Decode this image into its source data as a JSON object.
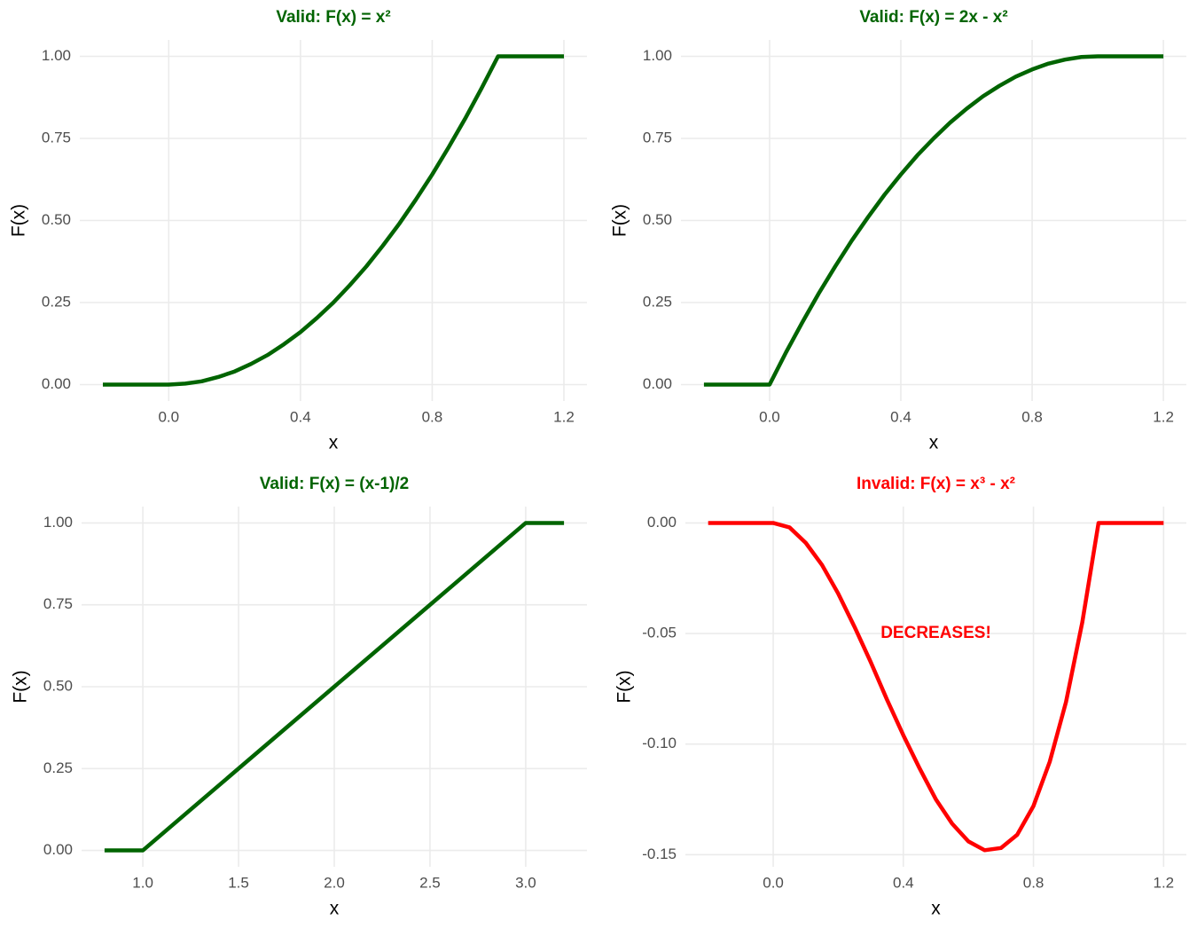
{
  "chart_data": [
    {
      "type": "line",
      "title": "Valid: F(x) = x²",
      "xlabel": "x",
      "ylabel": "F(x)",
      "color": "#006400",
      "x": [
        -0.2,
        -0.15,
        -0.1,
        -0.05,
        0,
        0.05,
        0.1,
        0.15,
        0.2,
        0.25,
        0.3,
        0.35,
        0.4,
        0.45,
        0.5,
        0.55,
        0.6,
        0.65,
        0.7,
        0.75,
        0.8,
        0.85,
        0.9,
        0.95,
        1,
        1.05,
        1.1,
        1.15,
        1.2
      ],
      "values": [
        0,
        0,
        0,
        0,
        0,
        0.003,
        0.01,
        0.023,
        0.04,
        0.063,
        0.09,
        0.123,
        0.16,
        0.203,
        0.25,
        0.303,
        0.36,
        0.423,
        0.49,
        0.563,
        0.64,
        0.723,
        0.81,
        0.903,
        1,
        1,
        1,
        1,
        1
      ],
      "xlim": [
        -0.27,
        1.27
      ],
      "ylim": [
        -0.05,
        1.05
      ],
      "xticks": [
        {
          "value": 0,
          "label": "0.0"
        },
        0.4,
        0.8,
        1.2
      ],
      "yticks": [
        {
          "value": 0,
          "label": "0.00"
        },
        0.25,
        {
          "value": 0.5,
          "label": "0.50"
        },
        0.75,
        {
          "value": 1,
          "label": "1.00"
        }
      ],
      "grid": true
    },
    {
      "type": "line",
      "title": "Valid: F(x) = 2x - x²",
      "xlabel": "x",
      "ylabel": "F(x)",
      "color": "#006400",
      "x": [
        -0.2,
        -0.15,
        -0.1,
        -0.05,
        0,
        0.05,
        0.1,
        0.15,
        0.2,
        0.25,
        0.3,
        0.35,
        0.4,
        0.45,
        0.5,
        0.55,
        0.6,
        0.65,
        0.7,
        0.75,
        0.8,
        0.85,
        0.9,
        0.95,
        1,
        1.05,
        1.1,
        1.15,
        1.2
      ],
      "values": [
        0,
        0,
        0,
        0,
        0,
        0.098,
        0.19,
        0.278,
        0.36,
        0.438,
        0.51,
        0.578,
        0.64,
        0.698,
        0.75,
        0.798,
        0.84,
        0.878,
        0.91,
        0.938,
        0.96,
        0.978,
        0.99,
        0.998,
        1,
        1,
        1,
        1,
        1
      ],
      "xlim": [
        -0.27,
        1.27
      ],
      "ylim": [
        -0.05,
        1.05
      ],
      "xticks": [
        {
          "value": 0,
          "label": "0.0"
        },
        0.4,
        0.8,
        1.2
      ],
      "yticks": [
        {
          "value": 0,
          "label": "0.00"
        },
        0.25,
        {
          "value": 0.5,
          "label": "0.50"
        },
        0.75,
        {
          "value": 1,
          "label": "1.00"
        }
      ],
      "grid": true
    },
    {
      "type": "line",
      "title": "Valid: F(x) = (x-1)/2",
      "xlabel": "x",
      "ylabel": "F(x)",
      "color": "#006400",
      "x": [
        0.8,
        1,
        1.5,
        2,
        2.5,
        3,
        3.2
      ],
      "values": [
        0,
        0,
        0.25,
        0.5,
        0.75,
        1,
        1
      ],
      "xlim": [
        0.68,
        3.32
      ],
      "ylim": [
        -0.05,
        1.05
      ],
      "xticks": [
        {
          "value": 1,
          "label": "1.0"
        },
        1.5,
        {
          "value": 2,
          "label": "2.0"
        },
        2.5,
        {
          "value": 3,
          "label": "3.0"
        }
      ],
      "yticks": [
        {
          "value": 0,
          "label": "0.00"
        },
        0.25,
        {
          "value": 0.5,
          "label": "0.50"
        },
        0.75,
        {
          "value": 1,
          "label": "1.00"
        }
      ],
      "grid": true
    },
    {
      "type": "line",
      "title": "Invalid: F(x) = x³ - x²",
      "xlabel": "x",
      "ylabel": "F(x)",
      "color": "#ff0000",
      "x": [
        -0.2,
        -0.15,
        -0.1,
        -0.05,
        0,
        0.05,
        0.1,
        0.15,
        0.2,
        0.25,
        0.3,
        0.35,
        0.4,
        0.45,
        0.5,
        0.55,
        0.6,
        0.65,
        0.7,
        0.75,
        0.8,
        0.85,
        0.9,
        0.95,
        1,
        1.05,
        1.1,
        1.15,
        1.2
      ],
      "values": [
        0,
        0,
        0,
        0,
        0,
        -0.002,
        -0.009,
        -0.019,
        -0.032,
        -0.047,
        -0.063,
        -0.08,
        -0.096,
        -0.111,
        -0.125,
        -0.136,
        -0.144,
        -0.148,
        -0.147,
        -0.141,
        -0.128,
        -0.108,
        -0.081,
        -0.045,
        0,
        0,
        0,
        0,
        0
      ],
      "xlim": [
        -0.27,
        1.27
      ],
      "ylim": [
        -0.1555,
        0.0074
      ],
      "xticks": [
        {
          "value": 0,
          "label": "0.0"
        },
        0.4,
        0.8,
        1.2
      ],
      "yticks": [
        {
          "value": 0,
          "label": "0.00"
        },
        -0.05,
        {
          "value": -0.1,
          "label": "-0.10"
        },
        -0.15
      ],
      "grid": true,
      "annotation": {
        "text": "DECREASES!",
        "x": 0.5,
        "y": -0.05
      }
    }
  ]
}
